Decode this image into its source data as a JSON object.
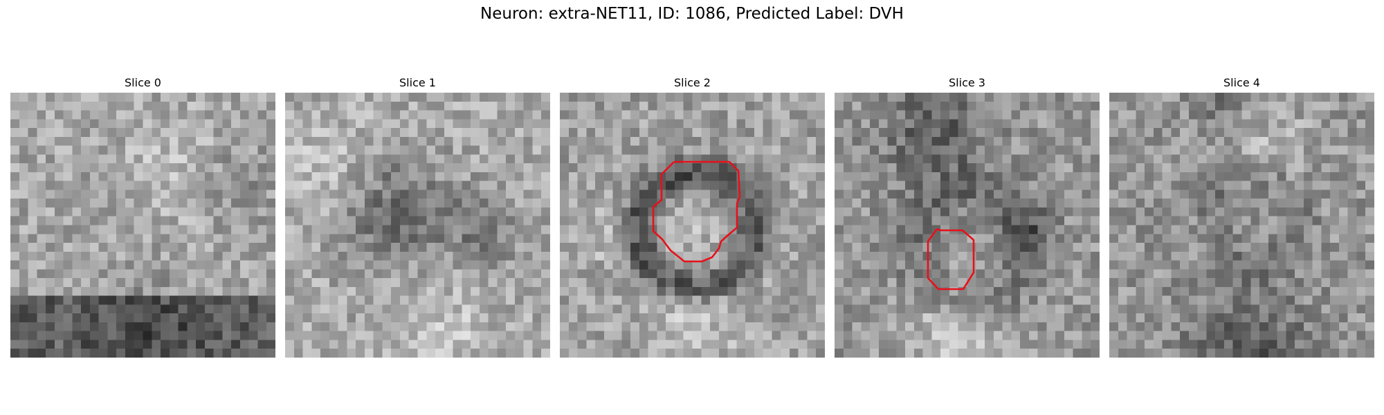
{
  "figure": {
    "title": "Neuron: extra-NET11, ID: 1086, Predicted Label: DVH"
  },
  "slices": [
    {
      "label": "Slice 0",
      "has_contour": false
    },
    {
      "label": "Slice 1",
      "has_contour": false
    },
    {
      "label": "Slice 2",
      "has_contour": true
    },
    {
      "label": "Slice 3",
      "has_contour": true
    },
    {
      "label": "Slice 4",
      "has_contour": false
    }
  ],
  "colors": {
    "contour": "#e8101a",
    "background": "#ffffff"
  }
}
